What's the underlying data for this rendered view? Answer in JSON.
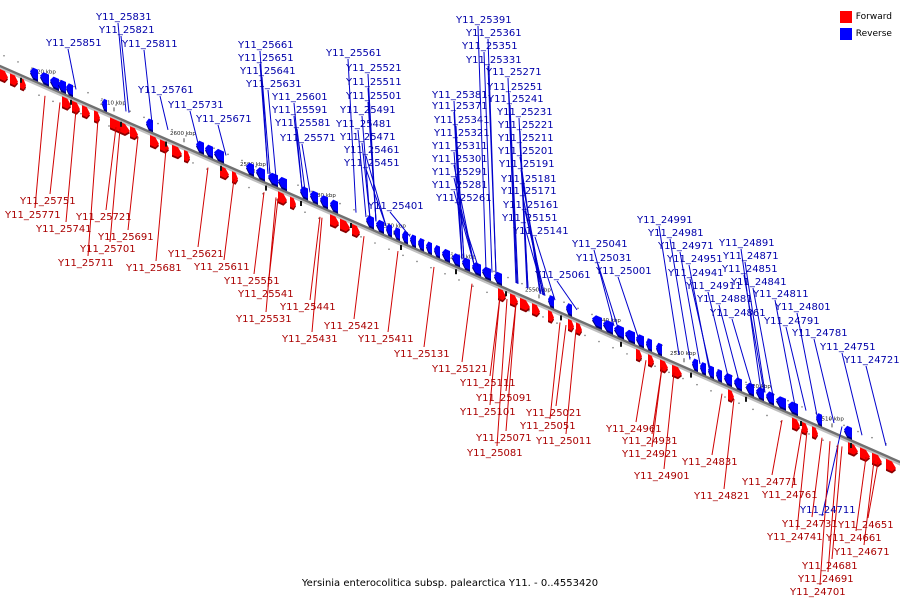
{
  "caption": "Yersinia enterocolitica subsp. palearctica Y11. - 0..4553420",
  "legend": {
    "forward_label": "Forward",
    "reverse_label": "Reverse"
  },
  "colors": {
    "forward": "#ff0000",
    "reverse": "#0000ff",
    "forward_line": "#d00000",
    "reverse_line": "#0000cc",
    "axis": "#707070"
  },
  "ticks": [
    "2620 kbp",
    "2610 kbp",
    "2600 kbp",
    "2590 kbp",
    "2580 kbp",
    "2570 kbp",
    "2560 kbp",
    "2550 kbp",
    "2540 kbp",
    "2530 kbp",
    "2520 kbp",
    "2510 kbp"
  ],
  "reverse_genes": [
    "Y11_25831",
    "Y11_25821",
    "Y11_25851",
    "Y11_25811",
    "Y11_25761",
    "Y11_25731",
    "Y11_25671",
    "Y11_25661",
    "Y11_25651",
    "Y11_25641",
    "Y11_25631",
    "Y11_25601",
    "Y11_25591",
    "Y11_25581",
    "Y11_25571",
    "Y11_25561",
    "Y11_25521",
    "Y11_25511",
    "Y11_25501",
    "Y11_25491",
    "Y11_25481",
    "Y11_25471",
    "Y11_25461",
    "Y11_25451",
    "Y11_25401",
    "Y11_25391",
    "Y11_25361",
    "Y11_25351",
    "Y11_25331",
    "Y11_25271",
    "Y11_25381",
    "Y11_25251",
    "Y11_25371",
    "Y11_25241",
    "Y11_25231",
    "Y11_25341",
    "Y11_25221",
    "Y11_25321",
    "Y11_25211",
    "Y11_25311",
    "Y11_25201",
    "Y11_25301",
    "Y11_25191",
    "Y11_25291",
    "Y11_25181",
    "Y11_25281",
    "Y11_25171",
    "Y11_25261",
    "Y11_25161",
    "Y11_25151",
    "Y11_25141",
    "Y11_25041",
    "Y11_25031",
    "Y11_25061",
    "Y11_25001",
    "Y11_24991",
    "Y11_24981",
    "Y11_24971",
    "Y11_24951",
    "Y11_24941",
    "Y11_24911",
    "Y11_24891",
    "Y11_24871",
    "Y11_24851",
    "Y11_24841",
    "Y11_24881",
    "Y11_24811",
    "Y11_24861",
    "Y11_24801",
    "Y11_24791",
    "Y11_24781",
    "Y11_24751",
    "Y11_24721",
    "Y11_24711"
  ],
  "forward_genes": [
    "Y11_25751",
    "Y11_25771",
    "Y11_25721",
    "Y11_25741",
    "Y11_25691",
    "Y11_25701",
    "Y11_25711",
    "Y11_25681",
    "Y11_25621",
    "Y11_25611",
    "Y11_25551",
    "Y11_25541",
    "Y11_25441",
    "Y11_25531",
    "Y11_25421",
    "Y11_25431",
    "Y11_25411",
    "Y11_25131",
    "Y11_25121",
    "Y11_25111",
    "Y11_25091",
    "Y11_25101",
    "Y11_25051",
    "Y11_25021",
    "Y11_25071",
    "Y11_25011",
    "Y11_25081",
    "Y11_24961",
    "Y11_24931",
    "Y11_24921",
    "Y11_24901",
    "Y11_24831",
    "Y11_24821",
    "Y11_24771",
    "Y11_24761",
    "Y11_24731",
    "Y11_24651",
    "Y11_24741",
    "Y11_24661",
    "Y11_24671",
    "Y11_24681",
    "Y11_24691",
    "Y11_24701"
  ]
}
